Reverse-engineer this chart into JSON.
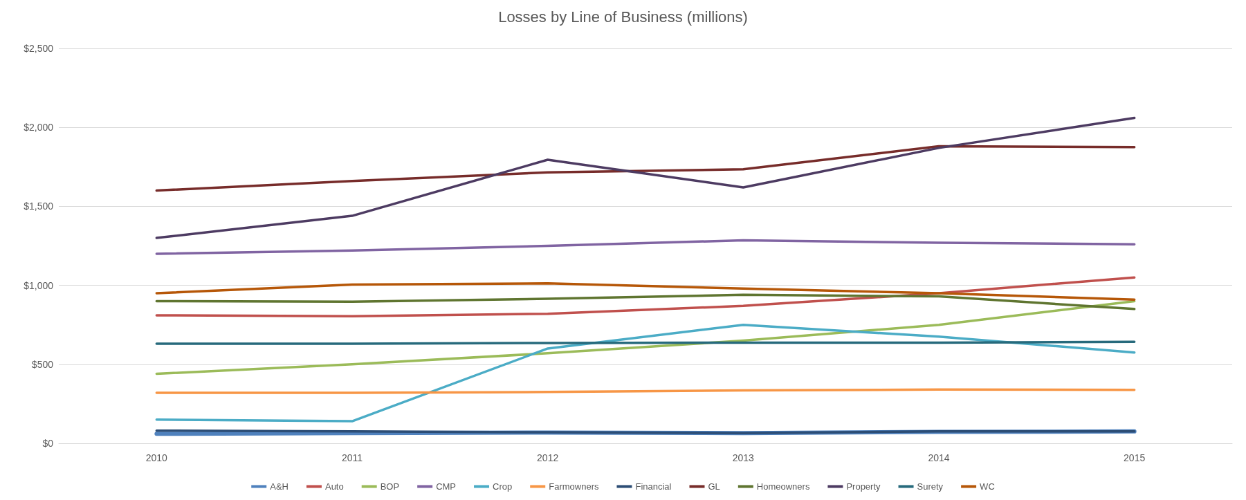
{
  "chart_data": {
    "type": "line",
    "title": "Losses by Line of Business (millions)",
    "categories": [
      "2010",
      "2011",
      "2012",
      "2013",
      "2014",
      "2015"
    ],
    "ylim": [
      0,
      2500
    ],
    "yticks": [
      {
        "value": 0,
        "label": "$0"
      },
      {
        "value": 500,
        "label": "$500"
      },
      {
        "value": 1000,
        "label": "$1,000"
      },
      {
        "value": 1500,
        "label": "$1,500"
      },
      {
        "value": 2000,
        "label": "$2,000"
      },
      {
        "value": 2500,
        "label": "$2,500"
      }
    ],
    "grid": "y",
    "legend": "bottom",
    "marker": "none",
    "line_style": "solid",
    "series": [
      {
        "name": "A&H",
        "color": "#4f81bd",
        "values": [
          60,
          65,
          68,
          65,
          72,
          75
        ]
      },
      {
        "name": "Auto",
        "color": "#c0504d",
        "values": [
          810,
          805,
          820,
          870,
          950,
          1050
        ]
      },
      {
        "name": "BOP",
        "color": "#9bbb59",
        "values": [
          440,
          500,
          570,
          650,
          750,
          900
        ]
      },
      {
        "name": "CMP",
        "color": "#8064a2",
        "values": [
          1200,
          1220,
          1250,
          1285,
          1270,
          1260
        ]
      },
      {
        "name": "Crop",
        "color": "#4bacc6",
        "values": [
          150,
          140,
          600,
          750,
          675,
          575
        ]
      },
      {
        "name": "Farmowners",
        "color": "#f79646",
        "values": [
          320,
          320,
          325,
          335,
          340,
          338
        ]
      },
      {
        "name": "Financial",
        "color": "#2c4d75",
        "values": [
          80,
          75,
          70,
          65,
          75,
          75
        ]
      },
      {
        "name": "GL",
        "color": "#772c2a",
        "values": [
          1600,
          1660,
          1715,
          1735,
          1880,
          1875
        ]
      },
      {
        "name": "Homeowners",
        "color": "#5f7530",
        "values": [
          900,
          897,
          915,
          940,
          930,
          850
        ]
      },
      {
        "name": "Property",
        "color": "#4d3b62",
        "values": [
          1300,
          1440,
          1795,
          1620,
          1870,
          2060
        ]
      },
      {
        "name": "Surety",
        "color": "#276a7c",
        "values": [
          630,
          630,
          635,
          637,
          637,
          643
        ]
      },
      {
        "name": "WC",
        "color": "#b65708",
        "values": [
          950,
          1005,
          1012,
          980,
          950,
          910
        ]
      }
    ]
  }
}
